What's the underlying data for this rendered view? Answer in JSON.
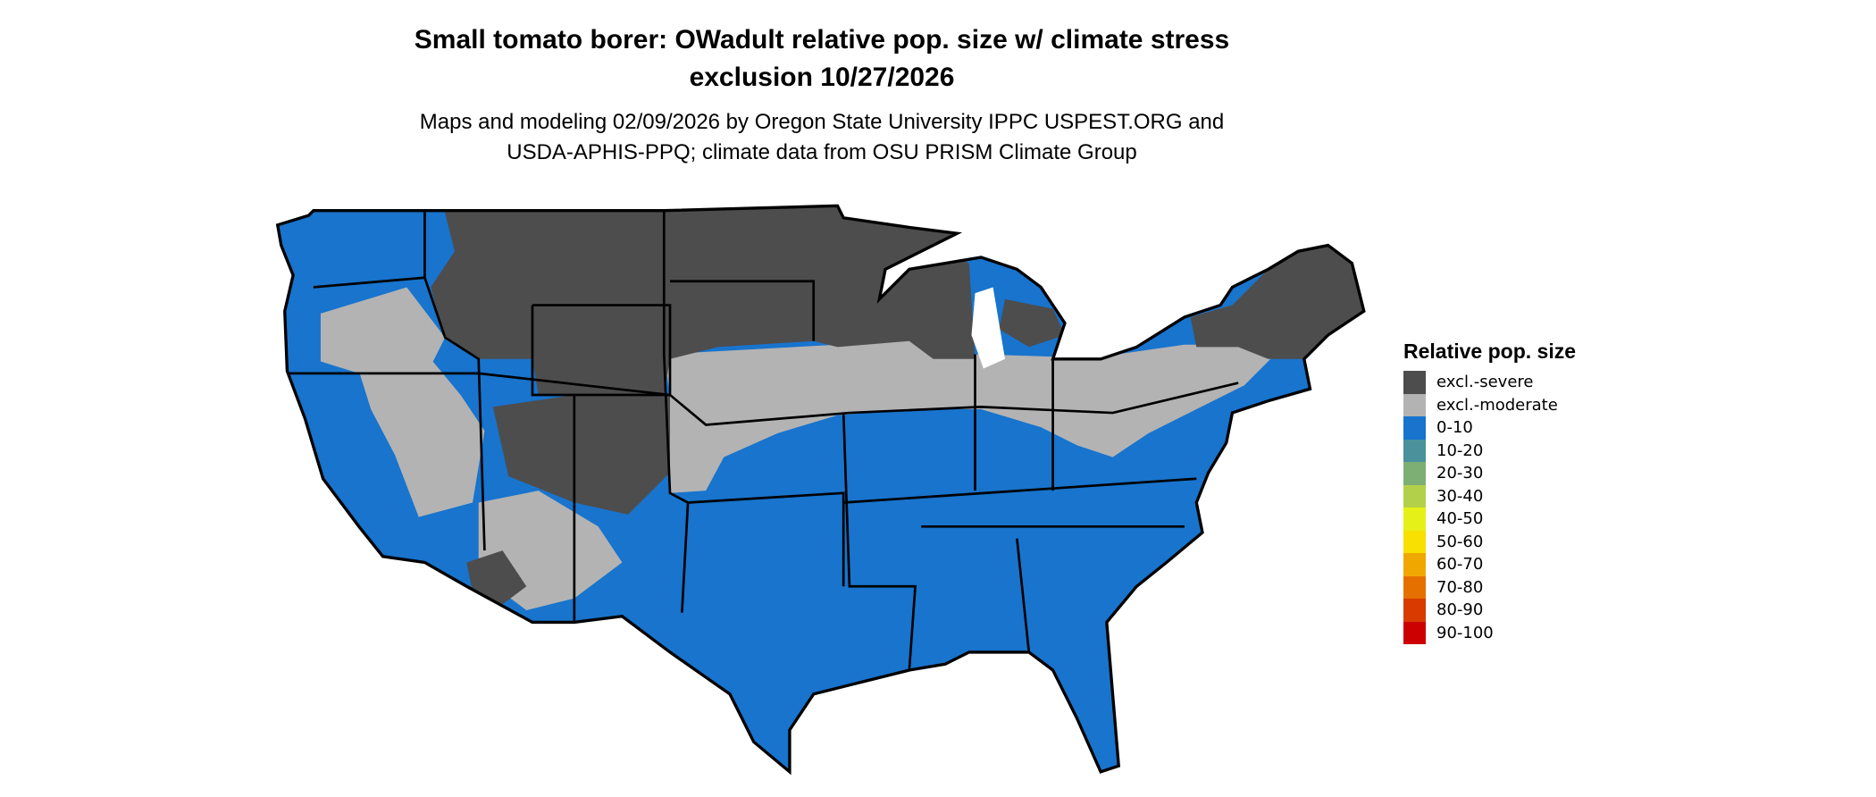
{
  "title": {
    "line1": "Small tomato borer: OWadult relative pop. size w/ climate stress",
    "line2": "exclusion 10/27/2026"
  },
  "subtitle": {
    "line1": "Maps and modeling 02/09/2026 by Oregon State University IPPC USPEST.ORG and",
    "line2": "USDA-APHIS-PPQ; climate data from OSU PRISM Climate Group"
  },
  "map": {
    "region": "Contiguous United States",
    "colors": {
      "excl_severe": "#4d4d4d",
      "excl_moderate": "#b3b3b3",
      "range_0_10": "#1874cd",
      "border": "#000000"
    }
  },
  "legend": {
    "title": "Relative pop. size",
    "items": [
      {
        "label": "excl.-severe",
        "color": "#4d4d4d"
      },
      {
        "label": "excl.-moderate",
        "color": "#b3b3b3"
      },
      {
        "label": "0-10",
        "color": "#1874cd"
      },
      {
        "label": "10-20",
        "color": "#4a919b"
      },
      {
        "label": "20-30",
        "color": "#7daf74"
      },
      {
        "label": "30-40",
        "color": "#b3d04a"
      },
      {
        "label": "40-50",
        "color": "#e5f018"
      },
      {
        "label": "50-60",
        "color": "#f8e000"
      },
      {
        "label": "60-70",
        "color": "#f0a800"
      },
      {
        "label": "70-80",
        "color": "#e57000"
      },
      {
        "label": "80-90",
        "color": "#d83a00"
      },
      {
        "label": "90-100",
        "color": "#cc0000"
      }
    ]
  }
}
